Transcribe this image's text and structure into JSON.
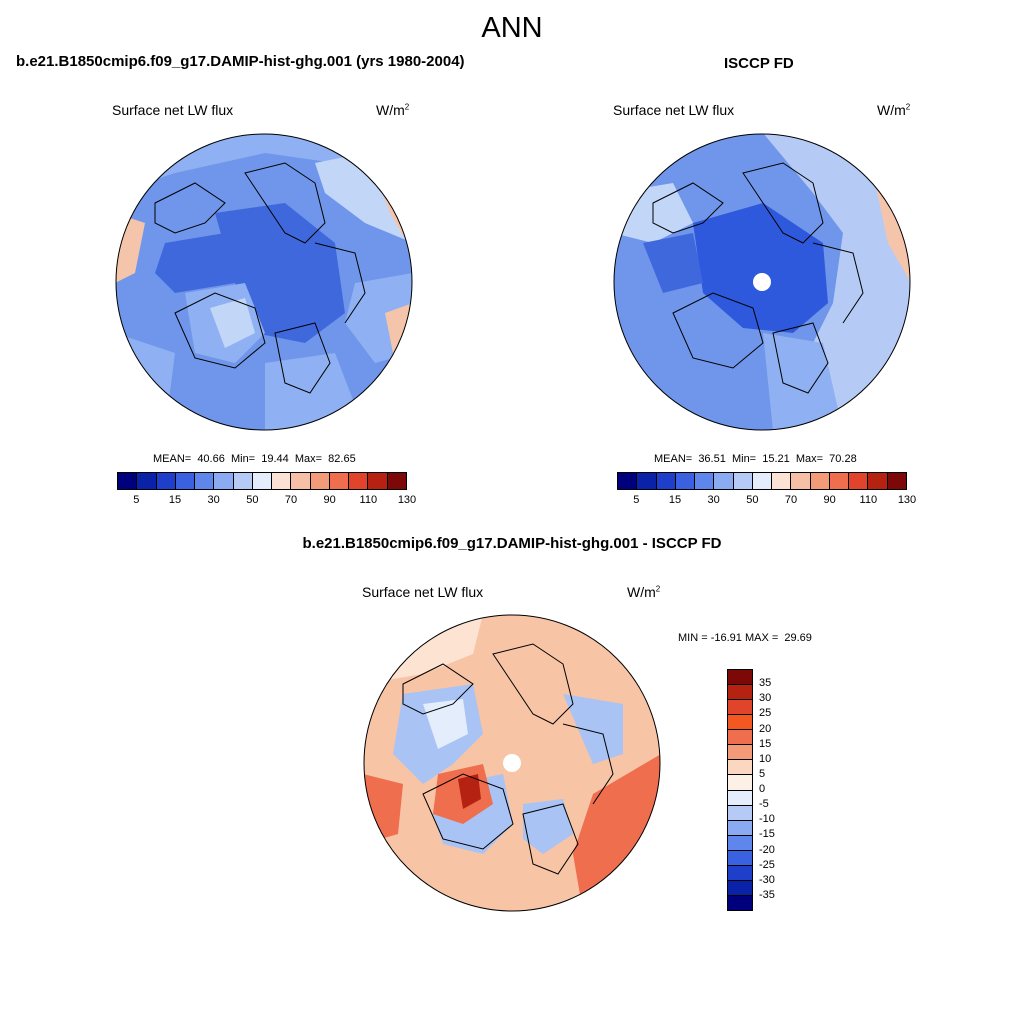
{
  "main_title": "ANN",
  "panels": [
    {
      "title": "b.e21.B1850cmip6.f09_g17.DAMIP-hist-ghg.001 (yrs 1980-2004)",
      "variable": "Surface net LW flux",
      "units_base": "W/m",
      "units_exp": "2",
      "stats": "MEAN=  40.66  Min=  19.44  Max=  82.65",
      "mean": 40.66,
      "min": 19.44,
      "max": 82.65
    },
    {
      "title": "ISCCP FD",
      "variable": "Surface net LW flux",
      "units_base": "W/m",
      "units_exp": "2",
      "stats": "MEAN=  36.51  Min=  15.21  Max=  70.28",
      "mean": 36.51,
      "min": 15.21,
      "max": 70.28
    },
    {
      "title": "b.e21.B1850cmip6.f09_g17.DAMIP-hist-ghg.001 - ISCCP FD",
      "variable": "Surface net LW flux",
      "units_base": "W/m",
      "units_exp": "2",
      "stats": "MIN = -16.91 MAX =  29.69",
      "min": -16.91,
      "max": 29.69
    }
  ],
  "abs_colorbar": {
    "tick_labels": [
      "5",
      "15",
      "30",
      "50",
      "70",
      "90",
      "110",
      "130"
    ],
    "colors": [
      "#00007d",
      "#0a22a8",
      "#1d3fc9",
      "#3a62e0",
      "#5e86ec",
      "#8aaaf2",
      "#b5cbf6",
      "#e3edfb",
      "#fbe2d4",
      "#f7c0a6",
      "#f39a78",
      "#ee6e4d",
      "#e0442a",
      "#b52211",
      "#7d0808"
    ]
  },
  "diff_colorbar": {
    "labels": [
      "35",
      "30",
      "25",
      "20",
      "15",
      "10",
      "5",
      "0",
      "-5",
      "-10",
      "-15",
      "-20",
      "-25",
      "-30",
      "-35"
    ],
    "colors": [
      "#7d0808",
      "#b52211",
      "#e0442a",
      "#f4571f",
      "#ee6e4d",
      "#f39a78",
      "#fbd7c2",
      "#fdf0e6",
      "#e3edfb",
      "#b5cbf6",
      "#8aaaf2",
      "#5e86ec",
      "#3a62e0",
      "#1d3fc9",
      "#0a22a8",
      "#00007d"
    ]
  },
  "palette": {
    "abs_base": "#6f96ea",
    "abs_dark": "#3f68dd",
    "abs_mid": "#8fb0f2",
    "abs_light": "#c2d6f7",
    "abs_warm": "#f5c5ab",
    "obs_center": "#2f59dc",
    "diff_base": "#f7c4a6",
    "diff_light": "#fde3d1",
    "diff_blue": "#a8c3f4",
    "diff_pale": "#e3edfb",
    "diff_hot": "#ee6e4d",
    "diff_dark": "#b52211"
  }
}
